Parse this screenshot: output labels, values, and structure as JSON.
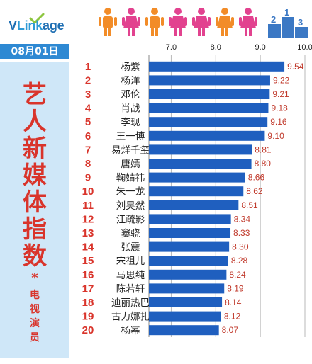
{
  "header": {
    "logo_text": "VLinkage",
    "people_colors": [
      "#f28c28",
      "#e2428f",
      "#f28c28",
      "#e2428f",
      "#e2428f",
      "#f28c28",
      "#e2428f"
    ],
    "podium": {
      "color": "#3b78c4",
      "labels": [
        "2",
        "1",
        "3"
      ]
    }
  },
  "date": "08月01日",
  "sidebar": {
    "title_chars": [
      "艺",
      "人",
      "新",
      "媒",
      "体",
      "指",
      "数"
    ],
    "star": "*",
    "subtitle_chars": [
      "电",
      "视",
      "演",
      "员"
    ]
  },
  "colors": {
    "bar": "#1f5fbf",
    "rank": "#d9342b",
    "value": "#c0392b",
    "sidebar_bg": "#cfe7f8"
  },
  "chart_data": {
    "type": "bar",
    "orientation": "horizontal",
    "title": "艺人新媒体指数 电视演员",
    "xlim": [
      6.5,
      10.0
    ],
    "xticks": [
      "7.0",
      "8.0",
      "9.0",
      "10.0"
    ],
    "xtick_values": [
      7.0,
      8.0,
      9.0,
      10.0
    ],
    "grid": true,
    "ranks": [
      "1",
      "2",
      "3",
      "4",
      "5",
      "6",
      "7",
      "8",
      "9",
      "10",
      "11",
      "12",
      "13",
      "14",
      "15",
      "16",
      "17",
      "18",
      "19",
      "20"
    ],
    "categories": [
      "杨紫",
      "杨洋",
      "邓伦",
      "肖战",
      "李现",
      "王一博",
      "易烊千玺",
      "唐嫣",
      "鞠婧祎",
      "朱一龙",
      "刘昊然",
      "江疏影",
      "窦骁",
      "张震",
      "宋祖儿",
      "马思纯",
      "陈若轩",
      "迪丽热巴",
      "古力娜扎",
      "杨幂"
    ],
    "values": [
      9.54,
      9.22,
      9.21,
      9.18,
      9.16,
      9.1,
      8.81,
      8.8,
      8.66,
      8.62,
      8.51,
      8.34,
      8.33,
      8.3,
      8.28,
      8.24,
      8.19,
      8.14,
      8.12,
      8.07
    ],
    "value_labels": [
      "9.54",
      "9.22",
      "9.21",
      "9.18",
      "9.16",
      "9.10",
      "8.81",
      "8.80",
      "8.66",
      "8.62",
      "8.51",
      "8.34",
      "8.33",
      "8.30",
      "8.28",
      "8.24",
      "8.19",
      "8.14",
      "8.12",
      "8.07"
    ]
  }
}
